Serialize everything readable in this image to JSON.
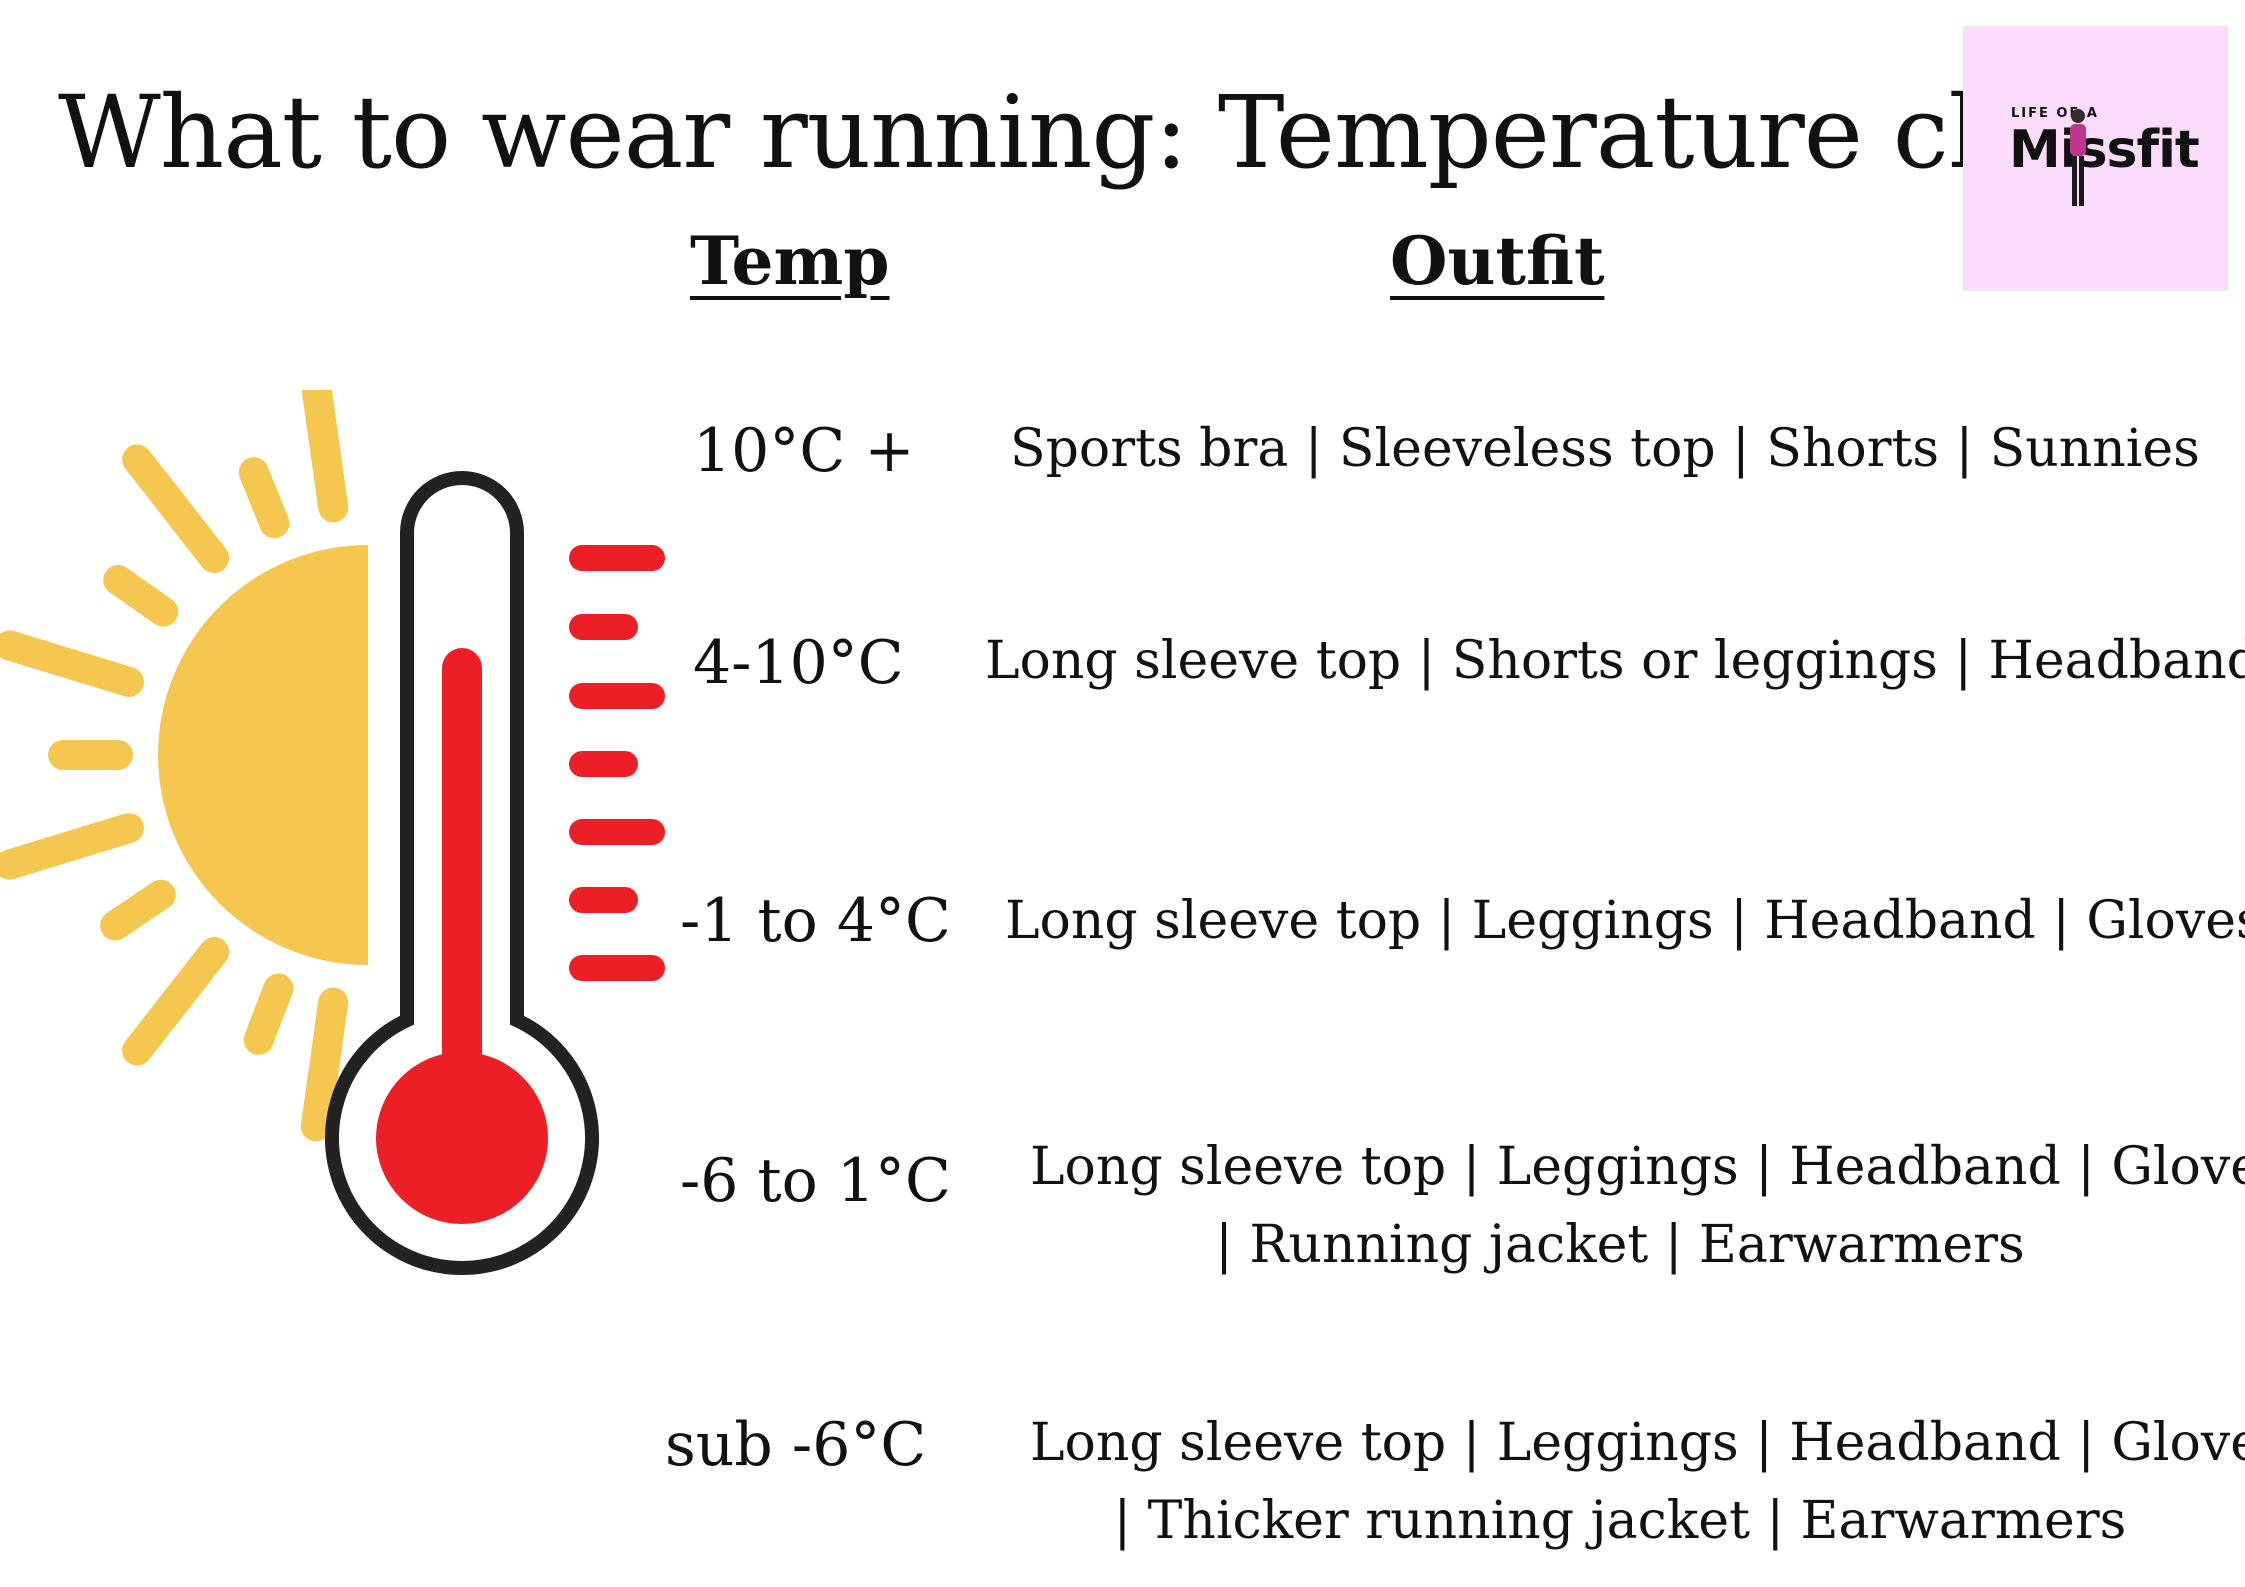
{
  "title": "What to wear running: Temperature chart",
  "logo": {
    "top_text": "LIFE OF A",
    "main_text": "Missfit",
    "background": "#fbdcfb"
  },
  "headers": {
    "temp": "Temp",
    "outfit": "Outfit"
  },
  "rows": [
    {
      "temp": "10°C +",
      "outfit_lines": [
        "Sports bra | Sleeveless top | Shorts  | Sunnies"
      ]
    },
    {
      "temp": "4-10°C",
      "outfit_lines": [
        "Long sleeve top | Shorts or leggings  | Headband"
      ]
    },
    {
      "temp": "-1 to 4°C",
      "outfit_lines": [
        "Long sleeve top | Leggings  | Headband | Gloves"
      ]
    },
    {
      "temp": "-6 to 1°C",
      "outfit_lines": [
        "Long sleeve top | Leggings  | Headband | Gloves |",
        "| Running jacket | Earwarmers"
      ]
    },
    {
      "temp": "sub -6°C",
      "outfit_lines": [
        "Long sleeve top | Leggings  | Headband | Gloves |",
        "| Thicker running jacket | Earwarmers"
      ]
    }
  ],
  "colors": {
    "sun": "#f5c74f",
    "thermometer_outline": "#222222",
    "mercury": "#ec1f26",
    "scale_marks": "#ec1f26"
  },
  "icons": {
    "sun": "sun-icon",
    "thermometer": "thermometer-icon"
  }
}
